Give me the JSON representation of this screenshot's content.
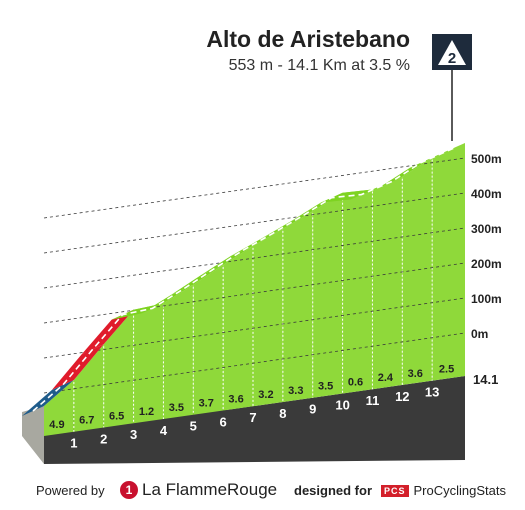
{
  "title": "Alto de Aristebano",
  "subtitle": "553 m - 14.1 Km at 3.5 %",
  "category_badge": "2",
  "chart_data": {
    "type": "area",
    "title": "Alto de Aristebano",
    "subtitle": "553 m - 14.1 Km at 3.5 %",
    "x_unit": "km",
    "y_unit": "m",
    "total_distance_km": 14.1,
    "elevation_gain_m": 553,
    "ylim": [
      0,
      553
    ],
    "ytick_labels": [
      "0m",
      "100m",
      "200m",
      "300m",
      "400m",
      "500m"
    ],
    "ytick_values": [
      0,
      100,
      200,
      300,
      400,
      500
    ],
    "km_markers": [
      "1",
      "2",
      "3",
      "4",
      "5",
      "6",
      "7",
      "8",
      "9",
      "10",
      "11",
      "12",
      "13"
    ],
    "end_marker": "14.1",
    "segments": [
      {
        "km_start": 0,
        "km_end": 1,
        "gradient": "4.9",
        "color": "#1f5c8b"
      },
      {
        "km_start": 1,
        "km_end": 2,
        "gradient": "6.7",
        "color": "#e01b2b"
      },
      {
        "km_start": 2,
        "km_end": 3,
        "gradient": "6.5",
        "color": "#e01b2b"
      },
      {
        "km_start": 3,
        "km_end": 4,
        "gradient": "1.2",
        "color": "#7ed321"
      },
      {
        "km_start": 4,
        "km_end": 5,
        "gradient": "3.5",
        "color": "#7ed321"
      },
      {
        "km_start": 5,
        "km_end": 6,
        "gradient": "3.7",
        "color": "#7ed321"
      },
      {
        "km_start": 6,
        "km_end": 7,
        "gradient": "3.6",
        "color": "#7ed321"
      },
      {
        "km_start": 7,
        "km_end": 8,
        "gradient": "3.2",
        "color": "#7ed321"
      },
      {
        "km_start": 8,
        "km_end": 9,
        "gradient": "3.3",
        "color": "#7ed321"
      },
      {
        "km_start": 9,
        "km_end": 10,
        "gradient": "3.5",
        "color": "#7ed321"
      },
      {
        "km_start": 10,
        "km_end": 11,
        "gradient": "0.6",
        "color": "#7ed321"
      },
      {
        "km_start": 11,
        "km_end": 12,
        "gradient": "2.4",
        "color": "#7ed321"
      },
      {
        "km_start": 12,
        "km_end": 13,
        "gradient": "3.6",
        "color": "#7ed321"
      },
      {
        "km_start": 13,
        "km_end": 14.1,
        "gradient": "2.5",
        "color": "#7ed321"
      }
    ]
  },
  "footer": {
    "powered_label": "Powered by",
    "lfr_mark": "1",
    "lfr_brand": "La FlammeRouge",
    "designed_label": "designed for",
    "pcs_mark": "PCS",
    "pcs_brand": "ProCyclingStats"
  }
}
